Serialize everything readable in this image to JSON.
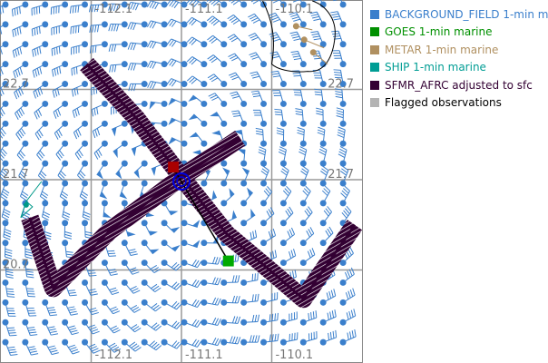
{
  "map": {
    "lon_labels": [
      "-112.1",
      "-111.1",
      "-110.1"
    ],
    "lat_labels": [
      "22.7",
      "21.7",
      "20.7"
    ],
    "colors": {
      "background_field": "#3a7fcc",
      "flight_track": "#330033",
      "grid": "#999999",
      "center_marker": "#0000dd",
      "start_marker": "#aa0000",
      "goes_marker": "#00aa00",
      "metar": "#b09060",
      "ship": "#009988"
    }
  },
  "legend": {
    "items": [
      {
        "label": "BACKGROUND_FIELD 1-min m",
        "color": "#3a7fcc"
      },
      {
        "label": "GOES 1-min marine",
        "color": "#009000"
      },
      {
        "label": "METAR 1-min marine",
        "color": "#b09060"
      },
      {
        "label": "SHIP 1-min marine",
        "color": "#009d94"
      },
      {
        "label": "SFMR_AFRC adjusted to sfc",
        "color": "#330033"
      },
      {
        "label": "Flagged observations",
        "color": "#b4b4b4",
        "text_color": "#000000"
      }
    ]
  }
}
